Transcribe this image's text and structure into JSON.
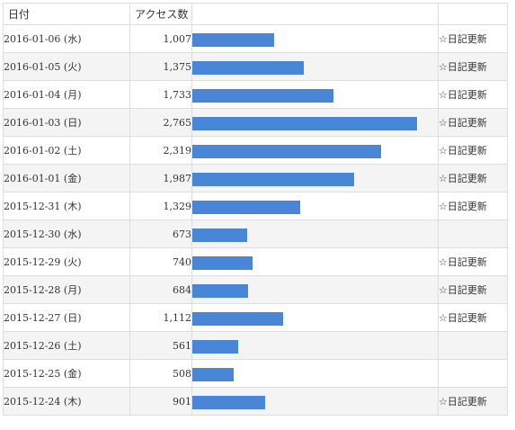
{
  "table": {
    "headers": [
      "日付",
      "アクセス数",
      "",
      ""
    ],
    "max_value": 2765,
    "rows": [
      {
        "date": "2016-01-06 (水)",
        "count": "1,007",
        "value": 1007,
        "note": "☆日記更新"
      },
      {
        "date": "2016-01-05 (火)",
        "count": "1,375",
        "value": 1375,
        "note": "☆日記更新"
      },
      {
        "date": "2016-01-04 (月)",
        "count": "1,733",
        "value": 1733,
        "note": "☆日記更新"
      },
      {
        "date": "2016-01-03 (日)",
        "count": "2,765",
        "value": 2765,
        "note": "☆日記更新"
      },
      {
        "date": "2016-01-02 (土)",
        "count": "2,319",
        "value": 2319,
        "note": "☆日記更新"
      },
      {
        "date": "2016-01-01 (金)",
        "count": "1,987",
        "value": 1987,
        "note": "☆日記更新"
      },
      {
        "date": "2015-12-31 (木)",
        "count": "1,329",
        "value": 1329,
        "note": "☆日記更新"
      },
      {
        "date": "2015-12-30 (水)",
        "count": "673",
        "value": 673,
        "note": ""
      },
      {
        "date": "2015-12-29 (火)",
        "count": "740",
        "value": 740,
        "note": "☆日記更新"
      },
      {
        "date": "2015-12-28 (月)",
        "count": "684",
        "value": 684,
        "note": "☆日記更新"
      },
      {
        "date": "2015-12-27 (日)",
        "count": "1,112",
        "value": 1112,
        "note": "☆日記更新"
      },
      {
        "date": "2015-12-26 (土)",
        "count": "561",
        "value": 561,
        "note": ""
      },
      {
        "date": "2015-12-25 (金)",
        "count": "508",
        "value": 508,
        "note": ""
      },
      {
        "date": "2015-12-24 (木)",
        "count": "901",
        "value": 901,
        "note": "☆日記更新"
      }
    ]
  },
  "colors": {
    "bar": "#4a86d8",
    "alt_row": "#f4f4f4",
    "border": "#dddddd"
  }
}
